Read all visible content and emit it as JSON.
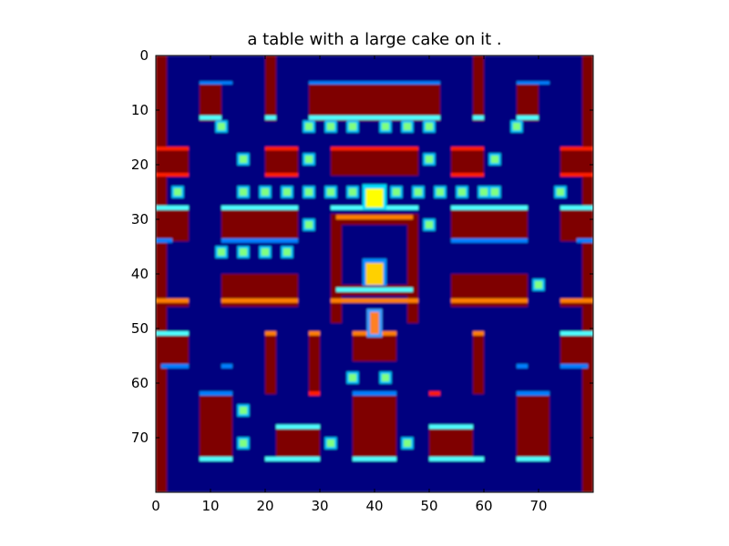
{
  "figure": {
    "title": "a table with a large cake on it ."
  },
  "axes": {
    "x_ticks": [
      "0",
      "10",
      "20",
      "30",
      "40",
      "50",
      "60",
      "70"
    ],
    "y_ticks": [
      "0",
      "10",
      "20",
      "30",
      "40",
      "50",
      "60",
      "70"
    ],
    "xlim": [
      0,
      80
    ],
    "ylim": [
      0,
      80
    ],
    "y_inverted": true
  },
  "game": {
    "name": "Ms. Pac-Man style maze",
    "colormap": "jet",
    "colors": {
      "background": "#00007f",
      "wall": "#7f0000",
      "wall_edge_red": "#ff1e00",
      "wall_edge_cyan": "#4dffff",
      "wall_edge_blue": "#0080ff",
      "wall_edge_orange": "#ff8000",
      "pellet": "#80ff80",
      "pellet_halo": "#00c0ff",
      "player": "#ffff00",
      "ghost": "#ffd000",
      "bonus": "#ff8020"
    },
    "player": {
      "x": 40,
      "y": 26
    },
    "ghost": {
      "x": 40,
      "y": 40
    },
    "bonus_item": {
      "x": 40,
      "y": 49
    }
  }
}
